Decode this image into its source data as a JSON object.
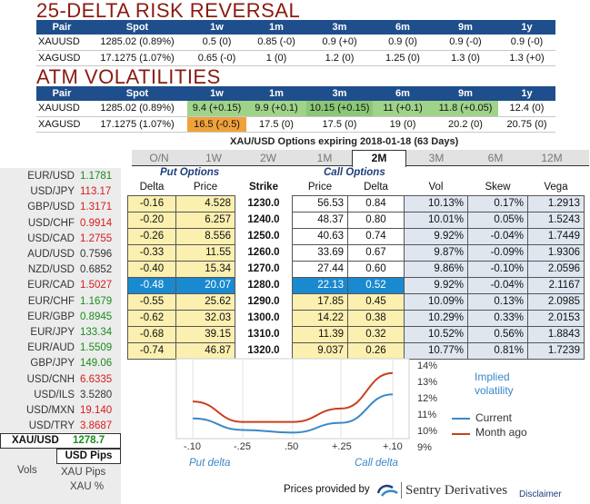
{
  "risk_reversal": {
    "title": "25-DELTA RISK REVERSAL",
    "headers": [
      "Pair",
      "Spot",
      "1w",
      "1m",
      "3m",
      "6m",
      "9m",
      "1y"
    ],
    "rows": [
      [
        "XAUUSD",
        "1285.02 (0.89%)",
        "0.5 (0)",
        "0.85 (-0)",
        "0.9 (+0)",
        "0.9 (0)",
        "0.9 (-0)",
        "0.9 (-0)"
      ],
      [
        "XAGUSD",
        "17.1275 (1.07%)",
        "0.65 (-0)",
        "1 (0)",
        "1.2 (0)",
        "1.25 (0)",
        "1.3 (0)",
        "1.3 (+0)"
      ]
    ]
  },
  "atm_vols": {
    "title": "ATM VOLATILITIES",
    "headers": [
      "Pair",
      "Spot",
      "1w",
      "1m",
      "3m",
      "6m",
      "9m",
      "1y"
    ],
    "rows": [
      [
        "XAUUSD",
        "1285.02 (0.89%)",
        "9.4 (+0.15)",
        "9.9 (+0.1)",
        "10.15 (+0.15)",
        "11 (+0.1)",
        "11.8 (+0.05)",
        "12.4 (0)"
      ],
      [
        "XAGUSD",
        "17.1275 (1.07%)",
        "16.5 (-0.5)",
        "17.5 (0)",
        "17.5 (0)",
        "19 (0)",
        "20.2 (0)",
        "20.75 (0)"
      ]
    ]
  },
  "options_caption": "XAU/USD Options expiring 2018-01-18 (63 Days)",
  "left_panel": {
    "pairs": [
      {
        "name": "EUR/USD",
        "value": "1.1781",
        "color": "green"
      },
      {
        "name": "USD/JPY",
        "value": "113.17",
        "color": "red"
      },
      {
        "name": "GBP/USD",
        "value": "1.3171",
        "color": "red"
      },
      {
        "name": "USD/CHF",
        "value": "0.9914",
        "color": "red"
      },
      {
        "name": "USD/CAD",
        "value": "1.2755",
        "color": "red"
      },
      {
        "name": "AUD/USD",
        "value": "0.7596",
        "color": "grey"
      },
      {
        "name": "NZD/USD",
        "value": "0.6852",
        "color": "grey"
      },
      {
        "name": "EUR/CAD",
        "value": "1.5027",
        "color": "red"
      },
      {
        "name": "EUR/CHF",
        "value": "1.1679",
        "color": "green"
      },
      {
        "name": "EUR/GBP",
        "value": "0.8945",
        "color": "green"
      },
      {
        "name": "EUR/JPY",
        "value": "133.34",
        "color": "green"
      },
      {
        "name": "EUR/AUD",
        "value": "1.5509",
        "color": "green"
      },
      {
        "name": "GBP/JPY",
        "value": "149.06",
        "color": "green"
      },
      {
        "name": "USD/CNH",
        "value": "6.6335",
        "color": "red"
      },
      {
        "name": "USD/ILS",
        "value": "3.5280",
        "color": "grey"
      },
      {
        "name": "USD/MXN",
        "value": "19.140",
        "color": "red"
      },
      {
        "name": "USD/TRY",
        "value": "3.8687",
        "color": "red"
      }
    ],
    "selected": {
      "name": "XAU/USD",
      "value": "1278.7"
    },
    "usd_pips": "USD Pips",
    "vols_label": "Vols",
    "xau_pips": "XAU Pips",
    "xau_pct": "XAU %"
  },
  "tabs": [
    "O/N",
    "1W",
    "2W",
    "1M",
    "2M",
    "3M",
    "6M",
    "12M"
  ],
  "active_tab": "2M",
  "grid": {
    "put_header": "Put Options",
    "call_header": "Call Options",
    "columns": [
      "Delta",
      "Price",
      "Strike",
      "Price",
      "Delta",
      "Vol",
      "Skew",
      "Vega"
    ],
    "rows": [
      {
        "put_delta": "-0.16",
        "put_price": "4.528",
        "strike": "1230.0",
        "call_price": "56.53",
        "call_delta": "0.84",
        "vol": "10.13%",
        "skew": "0.17%",
        "vega": "1.2913"
      },
      {
        "put_delta": "-0.20",
        "put_price": "6.257",
        "strike": "1240.0",
        "call_price": "48.37",
        "call_delta": "0.80",
        "vol": "10.01%",
        "skew": "0.05%",
        "vega": "1.5243"
      },
      {
        "put_delta": "-0.26",
        "put_price": "8.556",
        "strike": "1250.0",
        "call_price": "40.63",
        "call_delta": "0.74",
        "vol": "9.92%",
        "skew": "-0.04%",
        "vega": "1.7449"
      },
      {
        "put_delta": "-0.33",
        "put_price": "11.55",
        "strike": "1260.0",
        "call_price": "33.69",
        "call_delta": "0.67",
        "vol": "9.87%",
        "skew": "-0.09%",
        "vega": "1.9306"
      },
      {
        "put_delta": "-0.40",
        "put_price": "15.34",
        "strike": "1270.0",
        "call_price": "27.44",
        "call_delta": "0.60",
        "vol": "9.86%",
        "skew": "-0.10%",
        "vega": "2.0596"
      },
      {
        "put_delta": "-0.48",
        "put_price": "20.07",
        "strike": "1280.0",
        "call_price": "22.13",
        "call_delta": "0.52",
        "vol": "9.92%",
        "skew": "-0.04%",
        "vega": "2.1167"
      },
      {
        "put_delta": "-0.55",
        "put_price": "25.62",
        "strike": "1290.0",
        "call_price": "17.85",
        "call_delta": "0.45",
        "vol": "10.09%",
        "skew": "0.13%",
        "vega": "2.0985"
      },
      {
        "put_delta": "-0.62",
        "put_price": "32.03",
        "strike": "1300.0",
        "call_price": "14.22",
        "call_delta": "0.38",
        "vol": "10.29%",
        "skew": "0.33%",
        "vega": "2.0153"
      },
      {
        "put_delta": "-0.68",
        "put_price": "39.15",
        "strike": "1310.0",
        "call_price": "11.39",
        "call_delta": "0.32",
        "vol": "10.52%",
        "skew": "0.56%",
        "vega": "1.8843"
      },
      {
        "put_delta": "-0.74",
        "put_price": "46.87",
        "strike": "1320.0",
        "call_price": "9.037",
        "call_delta": "0.26",
        "vol": "10.77%",
        "skew": "0.81%",
        "vega": "1.7239"
      }
    ]
  },
  "chart_data": {
    "type": "line",
    "title": "Implied volatility",
    "x": [
      -0.1,
      -0.25,
      0.5,
      0.25,
      0.1
    ],
    "x_tick_labels": [
      "-.10",
      "-.25",
      ".50",
      "+.25",
      "+.10"
    ],
    "y_tick_labels": [
      "14%",
      "13%",
      "12%",
      "11%",
      "10%",
      "9%"
    ],
    "ylim": [
      9,
      14
    ],
    "x_axis_captions": {
      "left": "Put delta",
      "right": "Call delta"
    },
    "series": [
      {
        "name": "Current",
        "color": "#3b87c8",
        "values": [
          10.75,
          10.1,
          9.95,
          10.5,
          12.1
        ]
      },
      {
        "name": "Month ago",
        "color": "#c8401e",
        "values": [
          11.7,
          10.55,
          10.55,
          11.3,
          13.3
        ]
      }
    ],
    "legend_position": "right"
  },
  "footer": {
    "prices_by": "Prices provided by",
    "brand": "Sentry Derivatives",
    "disclaimer": "Disclaimer"
  }
}
